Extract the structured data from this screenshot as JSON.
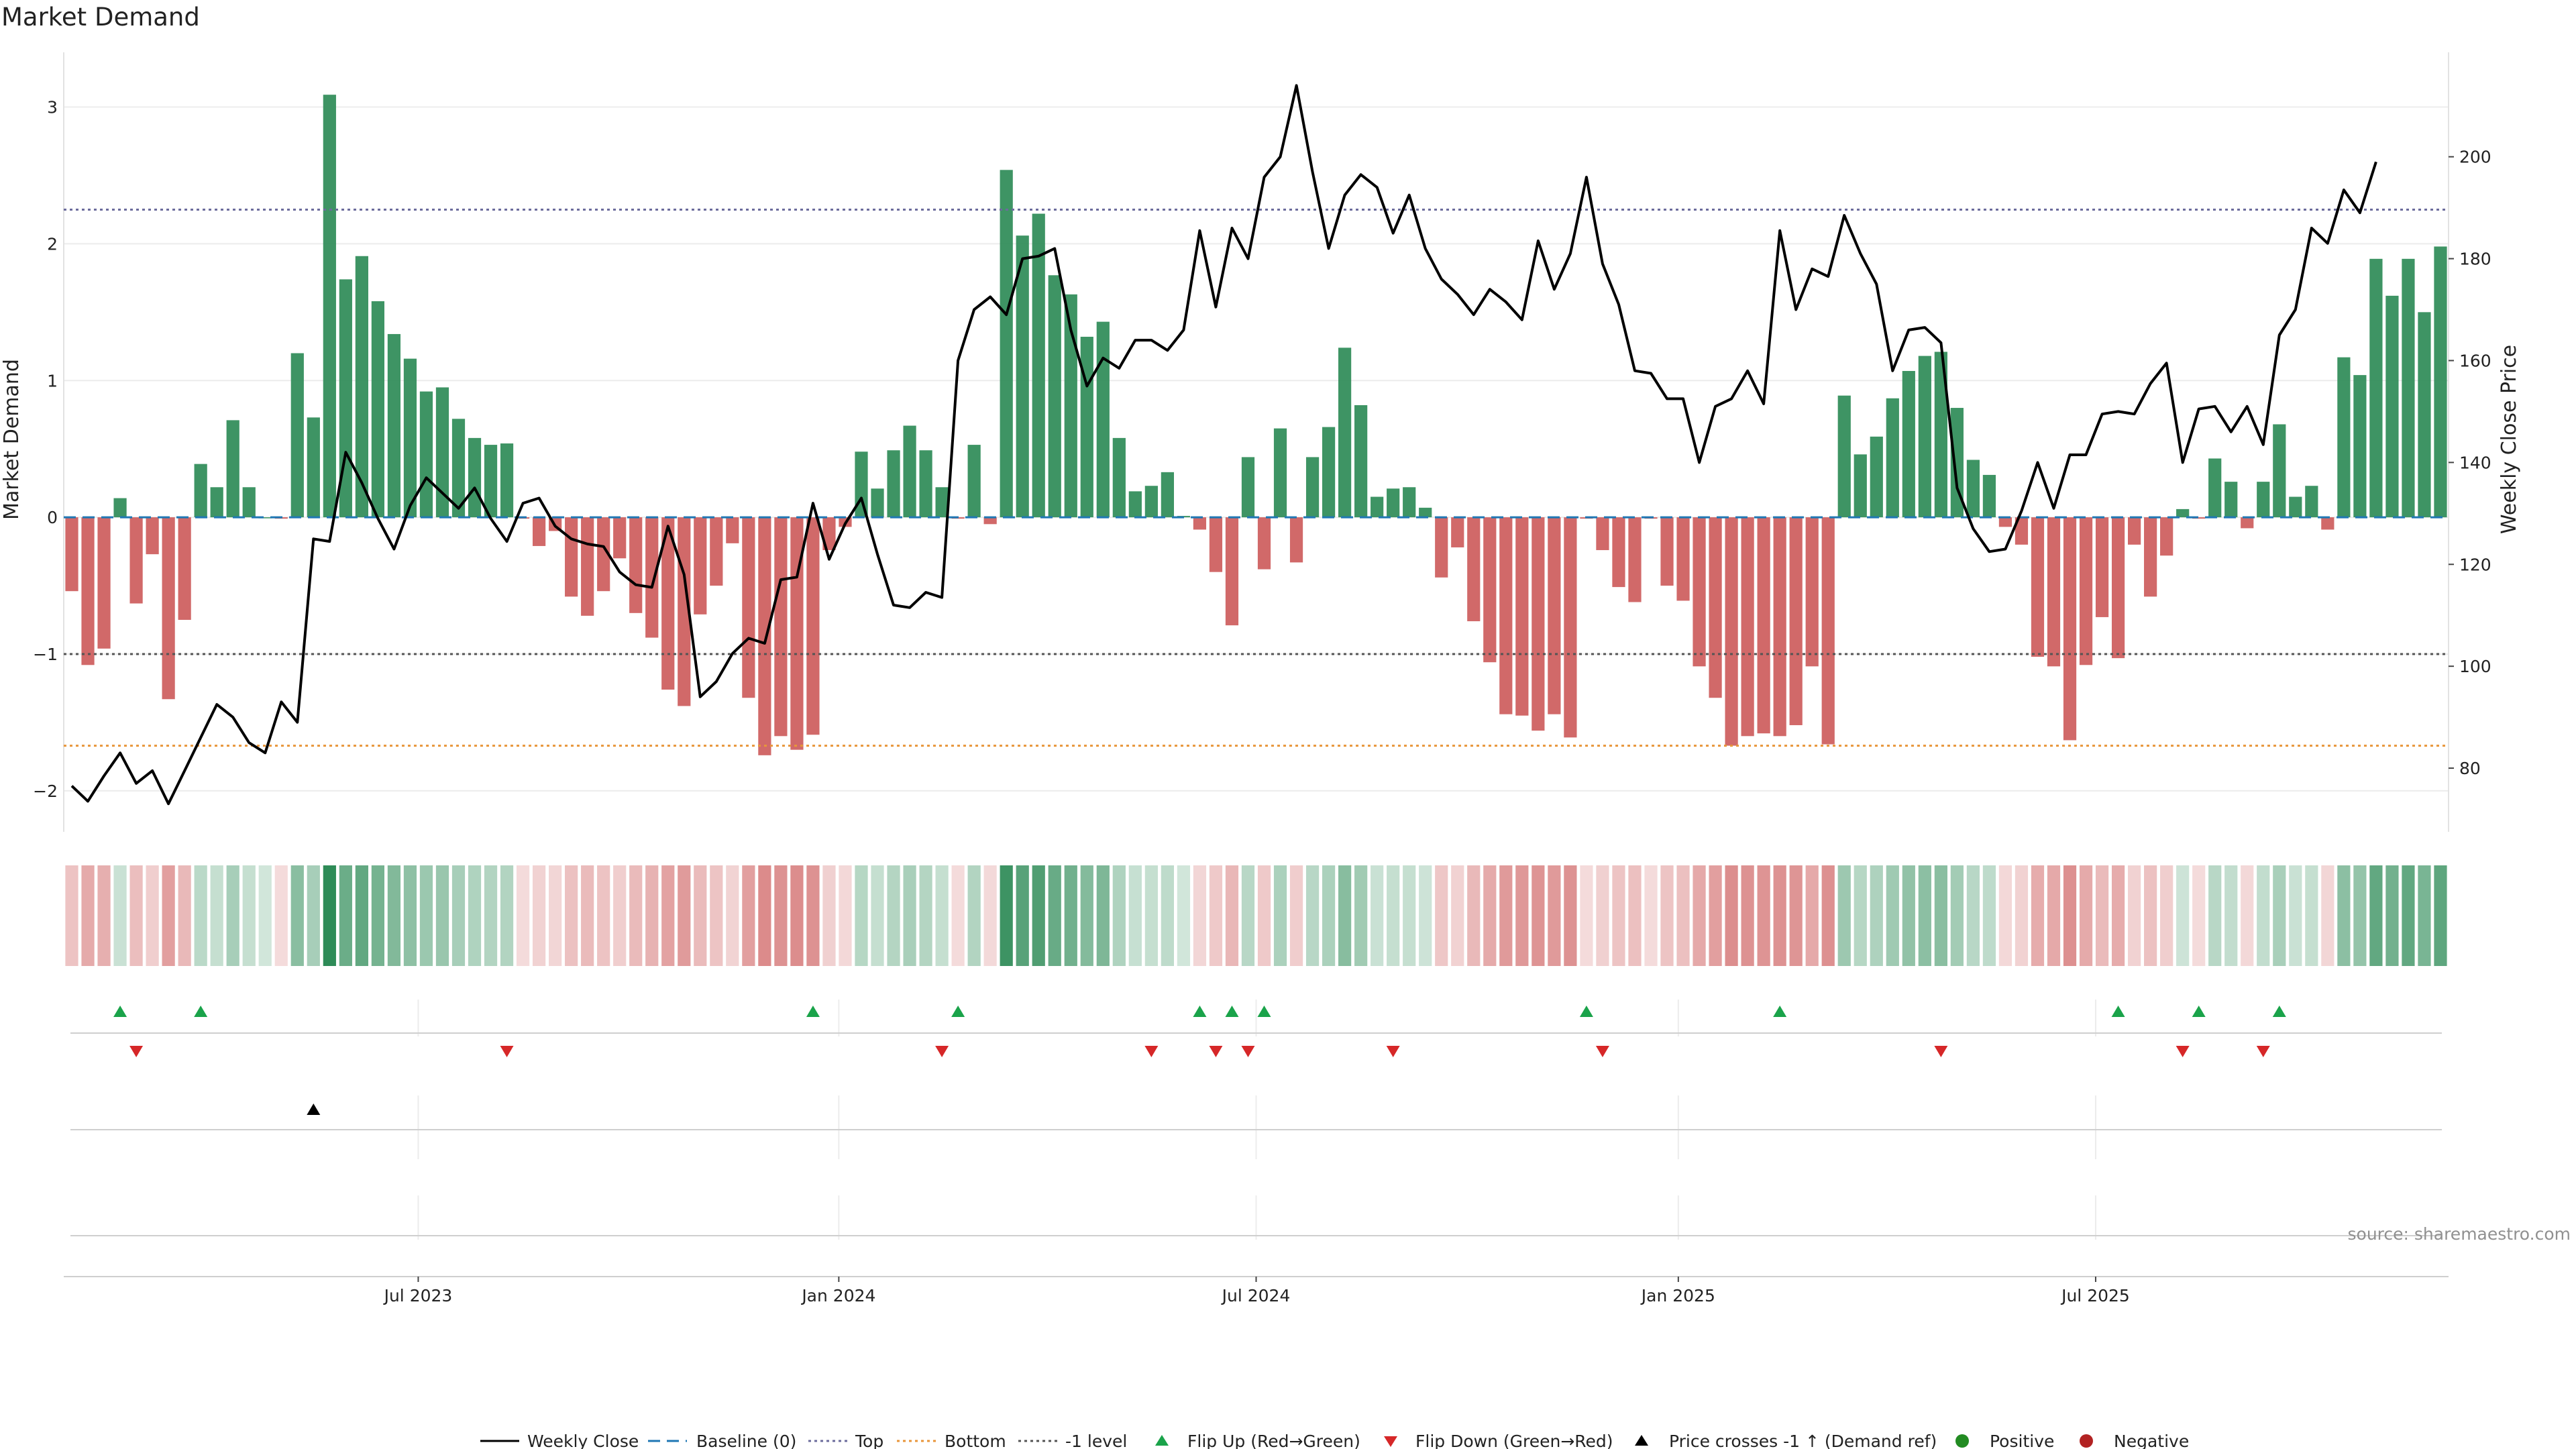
{
  "chart_data": {
    "type": "bar",
    "title": "Market Demand",
    "ylabel": "Market Demand",
    "y2label": "Weekly Close Price",
    "ylim": [
      -2.3,
      3.4
    ],
    "y2lim": [
      67.5,
      220.5
    ],
    "yticks": [
      -2,
      -1,
      0,
      1,
      2,
      3
    ],
    "y2ticks": [
      80,
      100,
      120,
      140,
      160,
      180,
      200
    ],
    "xticks": [
      {
        "label": "Jul 2023",
        "index": 21.5
      },
      {
        "label": "Jan 2024",
        "index": 47.6
      },
      {
        "label": "Jul 2024",
        "index": 73.5
      },
      {
        "label": "Jan 2025",
        "index": 99.7
      },
      {
        "label": "Jul 2025",
        "index": 125.6
      }
    ],
    "levels": {
      "top": 2.25,
      "minus_one": -1.0,
      "bottom": -1.67
    },
    "demand": [
      -0.54,
      -1.08,
      -0.96,
      0.14,
      -0.63,
      -0.27,
      -1.33,
      -0.75,
      0.39,
      0.22,
      0.71,
      0.22,
      0.0,
      -0.01,
      1.2,
      0.73,
      3.09,
      1.74,
      1.91,
      1.58,
      1.34,
      1.16,
      0.92,
      0.95,
      0.72,
      0.58,
      0.53,
      0.54,
      -0.01,
      -0.21,
      -0.1,
      -0.58,
      -0.72,
      -0.54,
      -0.3,
      -0.7,
      -0.88,
      -1.26,
      -1.38,
      -0.71,
      -0.5,
      -0.19,
      -1.32,
      -1.74,
      -1.6,
      -1.7,
      -1.59,
      -0.24,
      -0.07,
      0.48,
      0.21,
      0.49,
      0.67,
      0.49,
      0.22,
      -0.01,
      0.53,
      -0.05,
      2.54,
      2.06,
      2.22,
      1.77,
      1.63,
      1.32,
      1.43,
      0.58,
      0.19,
      0.23,
      0.33,
      0.01,
      -0.09,
      -0.4,
      -0.79,
      0.44,
      -0.38,
      0.65,
      -0.33,
      0.44,
      0.66,
      1.24,
      0.82,
      0.15,
      0.21,
      0.22,
      0.07,
      -0.44,
      -0.22,
      -0.76,
      -1.06,
      -1.44,
      -1.45,
      -1.56,
      -1.44,
      -1.61,
      -0.01,
      -0.24,
      -0.51,
      -0.62,
      -0.01,
      -0.5,
      -0.61,
      -1.09,
      -1.32,
      -1.67,
      -1.6,
      -1.58,
      -1.6,
      -1.52,
      -1.09,
      -1.66,
      0.89,
      0.46,
      0.59,
      0.87,
      1.07,
      1.18,
      1.21,
      0.8,
      0.42,
      0.31,
      -0.07,
      -0.2,
      -1.02,
      -1.09,
      -1.63,
      -1.08,
      -0.73,
      -1.03,
      -0.2,
      -0.58,
      -0.28,
      0.06,
      -0.01,
      0.43,
      0.26,
      -0.08,
      0.26,
      0.68,
      0.15,
      0.23,
      -0.09,
      1.17,
      1.04,
      1.89,
      1.62,
      1.89,
      1.5,
      1.98
    ],
    "price": [
      76.5,
      73.5,
      78.5,
      83,
      77,
      79.5,
      73,
      79.5,
      86,
      92.5,
      90,
      85,
      83,
      93,
      89,
      125,
      124.5,
      142,
      136,
      129,
      123,
      131.5,
      137,
      134,
      131,
      135,
      129,
      124.5,
      132,
      133,
      127.5,
      125,
      124,
      123.5,
      118.5,
      116,
      115.5,
      127.5,
      118,
      94,
      97,
      102.5,
      105.5,
      104.5,
      117,
      117.5,
      132,
      121,
      128,
      133,
      122,
      112,
      111.5,
      114.5,
      113.5,
      160,
      170,
      172.5,
      169,
      180,
      180.5,
      182,
      166,
      155,
      160.5,
      158.5,
      164,
      164,
      162,
      166,
      185.5,
      170.5,
      186,
      180,
      196,
      200,
      214,
      197,
      182,
      192.5,
      196.5,
      194,
      185,
      192.5,
      182,
      176,
      173,
      169,
      174,
      171.5,
      168,
      183.5,
      174,
      181,
      196,
      179,
      171,
      158,
      157.5,
      152.5,
      152.5,
      140,
      151,
      152.5,
      158,
      151.5,
      185.5,
      170,
      178,
      176.5,
      188.5,
      181,
      175,
      158,
      166,
      166.5,
      163.5,
      135,
      127,
      122.5,
      123,
      130.5,
      140,
      131,
      141.5,
      141.5,
      149.5,
      150,
      149.5,
      155.5,
      159.5,
      140,
      150.5,
      151,
      146,
      151,
      143.5,
      165,
      170,
      186,
      183,
      193.5,
      189,
      199
    ]
  },
  "legend": {
    "weekly_close": "Weekly Close",
    "baseline": "Baseline (0)",
    "top": "Top",
    "bottom": "Bottom",
    "minus_one": "-1 level",
    "flip_up": "Flip Up (Red→Green)",
    "flip_down": "Flip Down (Green→Red)",
    "price_cross": "Price crosses -1 ↑ (Demand ref)",
    "positive": "Positive",
    "negative": "Negative"
  },
  "source": "source: sharemaestro.com",
  "markers": {
    "flip_up": [
      3,
      8,
      46,
      55,
      70,
      72,
      74,
      94,
      106,
      127,
      132,
      137
    ],
    "flip_down": [
      4,
      27,
      54,
      67,
      71,
      73,
      82,
      95,
      116,
      131,
      136
    ],
    "price_cross": [
      15
    ]
  },
  "colors": {
    "positive": "#2e8b57",
    "negative": "#cd5c5c",
    "price_line": "#000000",
    "baseline": "#1f77b4",
    "top_line": "#6c6c9c",
    "bottom_line": "#e8963a",
    "minus_one_line": "#555555",
    "flip_up": "#1aa34a",
    "flip_down": "#d62728",
    "positive_dot": "#228b22",
    "negative_dot": "#b22222"
  }
}
